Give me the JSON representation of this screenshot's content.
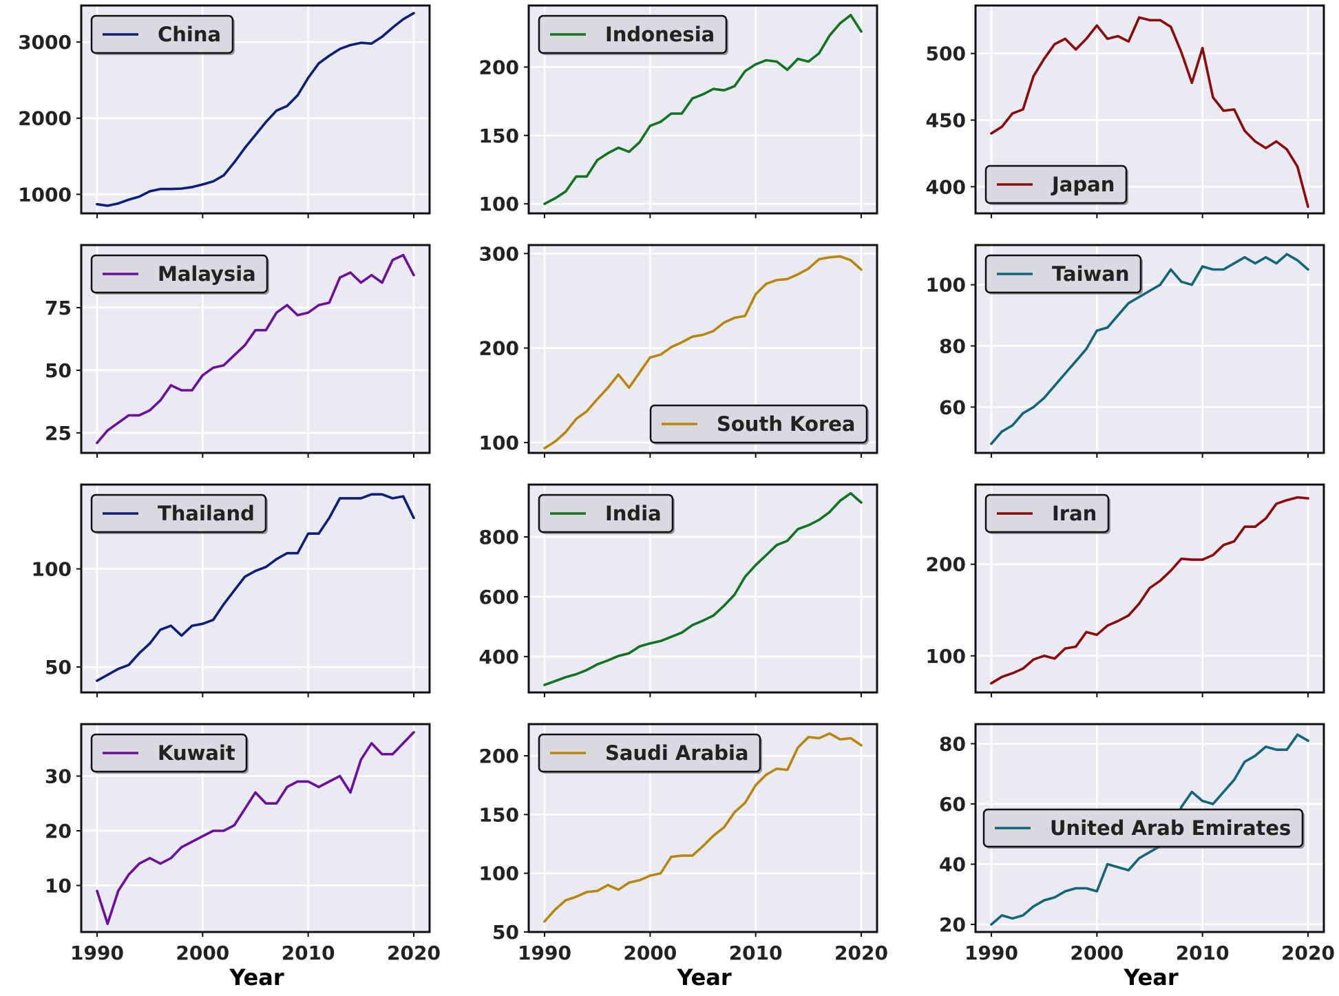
{
  "chart_data": [
    {
      "type": "line",
      "series": [
        {
          "name": "China",
          "color": "#0d1f7a",
          "x": [
            1990,
            1991,
            1992,
            1993,
            1994,
            1995,
            1996,
            1997,
            1998,
            1999,
            2000,
            2001,
            2002,
            2003,
            2004,
            2005,
            2006,
            2007,
            2008,
            2009,
            2010,
            2011,
            2012,
            2013,
            2014,
            2015,
            2016,
            2017,
            2018,
            2019,
            2020
          ],
          "y": [
            870,
            850,
            880,
            930,
            970,
            1040,
            1070,
            1070,
            1075,
            1095,
            1130,
            1170,
            1250,
            1420,
            1610,
            1780,
            1950,
            2100,
            2160,
            2300,
            2530,
            2720,
            2820,
            2910,
            2960,
            2990,
            2980,
            3070,
            3190,
            3300,
            3380
          ]
        }
      ],
      "xlim": [
        1988.5,
        2021.5
      ],
      "ylim": [
        750,
        3480
      ],
      "yticks": [
        1000,
        2000,
        3000
      ],
      "legend_loc": "upper left",
      "grid": true
    },
    {
      "type": "line",
      "series": [
        {
          "name": "Indonesia",
          "color": "#127321",
          "x": [
            1990,
            1991,
            1992,
            1993,
            1994,
            1995,
            1996,
            1997,
            1998,
            1999,
            2000,
            2001,
            2002,
            2003,
            2004,
            2005,
            2006,
            2007,
            2008,
            2009,
            2010,
            2011,
            2012,
            2013,
            2014,
            2015,
            2016,
            2017,
            2018,
            2019,
            2020
          ],
          "y": [
            100,
            104,
            109,
            120,
            120,
            132,
            137,
            141,
            138,
            145,
            157,
            160,
            166,
            166,
            177,
            180,
            184,
            183,
            186,
            197,
            202,
            205,
            204,
            198,
            206,
            204,
            210,
            223,
            232,
            238,
            226
          ]
        }
      ],
      "xlim": [
        1988.5,
        2021.5
      ],
      "ylim": [
        93,
        245
      ],
      "yticks": [
        100,
        150,
        200
      ],
      "legend_loc": "upper left",
      "grid": true
    },
    {
      "type": "line",
      "series": [
        {
          "name": "Japan",
          "color": "#8b0a0a",
          "x": [
            1990,
            1991,
            1992,
            1993,
            1994,
            1995,
            1996,
            1997,
            1998,
            1999,
            2000,
            2001,
            2002,
            2003,
            2004,
            2005,
            2006,
            2007,
            2008,
            2009,
            2010,
            2011,
            2012,
            2013,
            2014,
            2015,
            2016,
            2017,
            2018,
            2019,
            2020
          ],
          "y": [
            440,
            445,
            455,
            458,
            483,
            496,
            507,
            511,
            503,
            511,
            521,
            511,
            513,
            509,
            527,
            525,
            525,
            520,
            501,
            478,
            504,
            467,
            457,
            458,
            442,
            434,
            429,
            434,
            428,
            415,
            385
          ]
        }
      ],
      "xlim": [
        1988.5,
        2021.5
      ],
      "ylim": [
        380,
        536
      ],
      "yticks": [
        400,
        450,
        500
      ],
      "legend_loc": "lower left",
      "grid": true
    },
    {
      "type": "line",
      "series": [
        {
          "name": "Malaysia",
          "color": "#6c0f9e",
          "x": [
            1990,
            1991,
            1992,
            1993,
            1994,
            1995,
            1996,
            1997,
            1998,
            1999,
            2000,
            2001,
            2002,
            2003,
            2004,
            2005,
            2006,
            2007,
            2008,
            2009,
            2010,
            2011,
            2012,
            2013,
            2014,
            2015,
            2016,
            2017,
            2018,
            2019,
            2020
          ],
          "y": [
            21,
            26,
            29,
            32,
            32,
            34,
            38,
            44,
            42,
            42,
            48,
            51,
            52,
            56,
            60,
            66,
            66,
            73,
            76,
            72,
            73,
            76,
            77,
            87,
            89,
            85,
            88,
            85,
            94,
            96,
            88
          ]
        }
      ],
      "xlim": [
        1988.5,
        2021.5
      ],
      "ylim": [
        17,
        100
      ],
      "yticks": [
        25,
        50,
        75
      ],
      "legend_loc": "upper left",
      "grid": true
    },
    {
      "type": "line",
      "series": [
        {
          "name": "South Korea",
          "color": "#b8860b",
          "x": [
            1990,
            1991,
            1992,
            1993,
            1994,
            1995,
            1996,
            1997,
            1998,
            1999,
            2000,
            2001,
            2002,
            2003,
            2004,
            2005,
            2006,
            2007,
            2008,
            2009,
            2010,
            2011,
            2012,
            2013,
            2014,
            2015,
            2016,
            2017,
            2018,
            2019,
            2020
          ],
          "y": [
            94,
            101,
            111,
            125,
            133,
            146,
            158,
            172,
            158,
            174,
            190,
            193,
            201,
            206,
            212,
            214,
            218,
            227,
            232,
            234,
            257,
            268,
            272,
            273,
            278,
            284,
            294,
            296,
            297,
            293,
            283
          ]
        }
      ],
      "xlim": [
        1988.5,
        2021.5
      ],
      "ylim": [
        89,
        309
      ],
      "yticks": [
        100,
        200,
        300
      ],
      "legend_loc": "lower right",
      "grid": true
    },
    {
      "type": "line",
      "series": [
        {
          "name": "Taiwan",
          "color": "#136679",
          "x": [
            1990,
            1991,
            1992,
            1993,
            1994,
            1995,
            1996,
            1997,
            1998,
            1999,
            2000,
            2001,
            2002,
            2003,
            2004,
            2005,
            2006,
            2007,
            2008,
            2009,
            2010,
            2011,
            2012,
            2013,
            2014,
            2015,
            2016,
            2017,
            2018,
            2019,
            2020
          ],
          "y": [
            48,
            52,
            54,
            58,
            60,
            63,
            67,
            71,
            75,
            79,
            85,
            86,
            90,
            94,
            96,
            98,
            100,
            105,
            101,
            100,
            106,
            105,
            105,
            107,
            109,
            107,
            109,
            107,
            110,
            108,
            105
          ]
        }
      ],
      "xlim": [
        1988.5,
        2021.5
      ],
      "ylim": [
        45,
        113
      ],
      "yticks": [
        60,
        80,
        100
      ],
      "legend_loc": "upper left",
      "grid": true
    },
    {
      "type": "line",
      "series": [
        {
          "name": "Thailand",
          "color": "#0d1f7a",
          "x": [
            1990,
            1991,
            1992,
            1993,
            1994,
            1995,
            1996,
            1997,
            1998,
            1999,
            2000,
            2001,
            2002,
            2003,
            2004,
            2005,
            2006,
            2007,
            2008,
            2009,
            2010,
            2011,
            2012,
            2013,
            2014,
            2015,
            2016,
            2017,
            2018,
            2019,
            2020
          ],
          "y": [
            43,
            46,
            49,
            51,
            57,
            62,
            69,
            71,
            66,
            71,
            72,
            74,
            82,
            89,
            96,
            99,
            101,
            105,
            108,
            108,
            118,
            118,
            126,
            136,
            136,
            136,
            138,
            138,
            136,
            137,
            126
          ]
        }
      ],
      "xlim": [
        1988.5,
        2021.5
      ],
      "ylim": [
        37,
        143
      ],
      "yticks": [
        50,
        100
      ],
      "legend_loc": "upper left",
      "grid": true
    },
    {
      "type": "line",
      "series": [
        {
          "name": "India",
          "color": "#127321",
          "x": [
            1990,
            1991,
            1992,
            1993,
            1994,
            1995,
            1996,
            1997,
            1998,
            1999,
            2000,
            2001,
            2002,
            2003,
            2004,
            2005,
            2006,
            2007,
            2008,
            2009,
            2010,
            2011,
            2012,
            2013,
            2014,
            2015,
            2016,
            2017,
            2018,
            2019,
            2020
          ],
          "y": [
            305,
            318,
            331,
            341,
            355,
            374,
            387,
            402,
            411,
            434,
            444,
            452,
            466,
            480,
            505,
            520,
            537,
            570,
            607,
            667,
            706,
            739,
            773,
            787,
            826,
            839,
            857,
            883,
            921,
            946,
            915
          ]
        }
      ],
      "xlim": [
        1988.5,
        2021.5
      ],
      "ylim": [
        280,
        975
      ],
      "yticks": [
        400,
        600,
        800
      ],
      "legend_loc": "upper left",
      "grid": true
    },
    {
      "type": "line",
      "series": [
        {
          "name": "Iran",
          "color": "#8b0a0a",
          "x": [
            1990,
            1991,
            1992,
            1993,
            1994,
            1995,
            1996,
            1997,
            1998,
            1999,
            2000,
            2001,
            2002,
            2003,
            2004,
            2005,
            2006,
            2007,
            2008,
            2009,
            2010,
            2011,
            2012,
            2013,
            2014,
            2015,
            2016,
            2017,
            2018,
            2019,
            2020
          ],
          "y": [
            70,
            77,
            81,
            86,
            96,
            100,
            97,
            108,
            110,
            126,
            123,
            133,
            138,
            144,
            157,
            174,
            182,
            193,
            206,
            205,
            205,
            210,
            221,
            225,
            241,
            241,
            250,
            266,
            270,
            273,
            272
          ]
        }
      ],
      "xlim": [
        1988.5,
        2021.5
      ],
      "ylim": [
        60,
        287
      ],
      "yticks": [
        100,
        200
      ],
      "legend_loc": "upper left",
      "grid": true
    },
    {
      "type": "line",
      "series": [
        {
          "name": "Kuwait",
          "color": "#6c0f9e",
          "x": [
            1990,
            1991,
            1992,
            1993,
            1994,
            1995,
            1996,
            1997,
            1998,
            1999,
            2000,
            2001,
            2002,
            2003,
            2004,
            2005,
            2006,
            2007,
            2008,
            2009,
            2010,
            2011,
            2012,
            2013,
            2014,
            2015,
            2016,
            2017,
            2018,
            2019,
            2020
          ],
          "y": [
            9,
            3,
            9,
            12,
            14,
            15,
            14,
            15,
            17,
            18,
            19,
            20,
            20,
            21,
            24,
            27,
            25,
            25,
            28,
            29,
            29,
            28,
            29,
            30,
            27,
            33,
            36,
            34,
            34,
            36,
            38
          ]
        }
      ],
      "xlim": [
        1988.5,
        2021.5
      ],
      "ylim": [
        1.5,
        39.5
      ],
      "yticks": [
        10,
        20,
        30
      ],
      "legend_loc": "upper left",
      "grid": true
    },
    {
      "type": "line",
      "series": [
        {
          "name": "Saudi Arabia",
          "color": "#b8860b",
          "x": [
            1990,
            1991,
            1992,
            1993,
            1994,
            1995,
            1996,
            1997,
            1998,
            1999,
            2000,
            2001,
            2002,
            2003,
            2004,
            2005,
            2006,
            2007,
            2008,
            2009,
            2010,
            2011,
            2012,
            2013,
            2014,
            2015,
            2016,
            2017,
            2018,
            2019,
            2020
          ],
          "y": [
            59,
            69,
            77,
            80,
            84,
            85,
            90,
            86,
            92,
            94,
            98,
            100,
            114,
            115,
            115,
            123,
            132,
            139,
            152,
            160,
            175,
            184,
            189,
            188,
            207,
            216,
            215,
            219,
            214,
            215,
            209
          ]
        }
      ],
      "xlim": [
        1988.5,
        2021.5
      ],
      "ylim": [
        50,
        227
      ],
      "yticks": [
        50,
        100,
        150,
        200
      ],
      "legend_loc": "upper left",
      "grid": true
    },
    {
      "type": "line",
      "series": [
        {
          "name": "United Arab Emirates",
          "color": "#136679",
          "x": [
            1990,
            1991,
            1992,
            1993,
            1994,
            1995,
            1996,
            1997,
            1998,
            1999,
            2000,
            2001,
            2002,
            2003,
            2004,
            2005,
            2006,
            2007,
            2008,
            2009,
            2010,
            2011,
            2012,
            2013,
            2014,
            2015,
            2016,
            2017,
            2018,
            2019,
            2020
          ],
          "y": [
            20,
            23,
            22,
            23,
            26,
            28,
            29,
            31,
            32,
            32,
            31,
            40,
            39,
            38,
            42,
            44,
            46,
            49,
            59,
            64,
            61,
            60,
            64,
            68,
            74,
            76,
            79,
            78,
            78,
            83,
            81
          ]
        }
      ],
      "xlim": [
        1988.5,
        2021.5
      ],
      "ylim": [
        17.5,
        86.5
      ],
      "yticks": [
        20,
        40,
        60,
        80
      ],
      "legend_loc": "center left",
      "grid": true
    }
  ],
  "figure": {
    "xlabel": "Year",
    "xticks": [
      1990,
      2000,
      2010,
      2020
    ],
    "panel_background": "#eaeaf2",
    "grid_color": "#ffffff",
    "legend_background": "#d9d9de"
  }
}
